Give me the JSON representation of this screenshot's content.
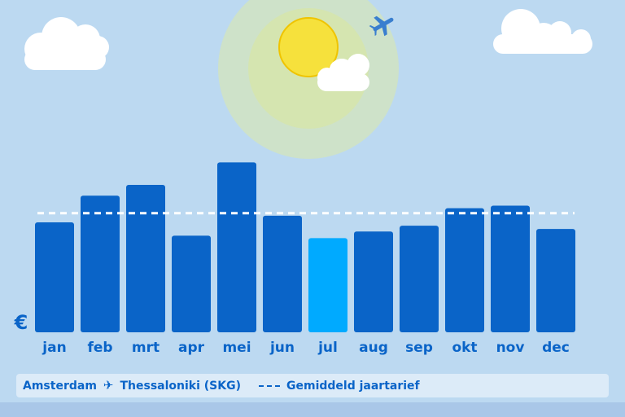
{
  "colors": {
    "background": "#bcd9f1",
    "bar": "#0a64c8",
    "bar_highlight": "#00aaff",
    "average_line": "#ffffff",
    "label": "#0a64c8"
  },
  "currency_symbol": "€",
  "legend": {
    "origin": "Amsterdam",
    "plane_icon": "✈",
    "destination": "Thessaloniki (SKG)",
    "average_label": "Gemiddeld jaartarief"
  },
  "chart_data": {
    "type": "bar",
    "categories": [
      "jan",
      "feb",
      "mrt",
      "apr",
      "mei",
      "jun",
      "jul",
      "aug",
      "sep",
      "okt",
      "nov",
      "dec"
    ],
    "values": [
      132,
      164,
      177,
      116,
      204,
      140,
      113,
      121,
      128,
      149,
      152,
      124
    ],
    "highlighted_category": "jul",
    "average": 143,
    "ylim": [
      0,
      220
    ],
    "grid": false,
    "ylabel": "€",
    "xlabel": "",
    "title": ""
  }
}
